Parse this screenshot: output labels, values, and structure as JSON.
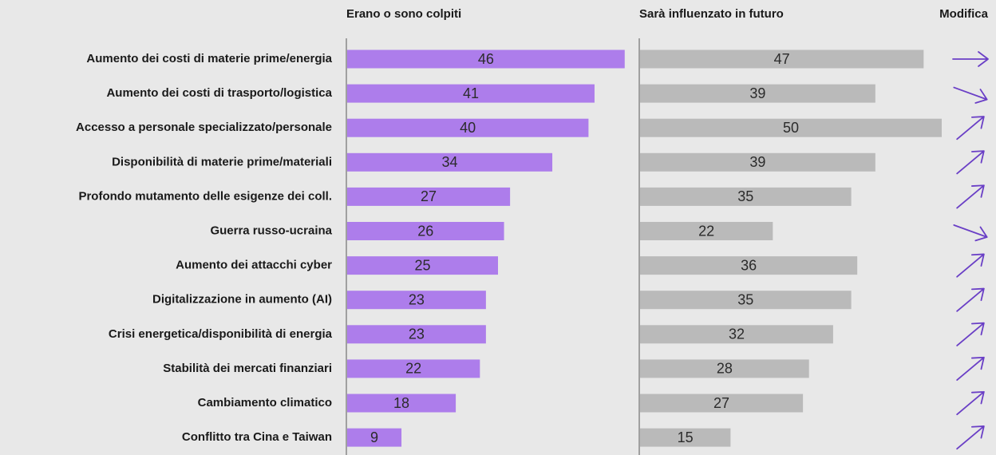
{
  "chart_data": {
    "type": "bar",
    "orientation": "horizontal",
    "categories": [
      "Aumento dei costi di materie prime/energia",
      "Aumento dei costi di trasporto/logistica",
      "Accesso a personale specializzato/personale",
      "Disponibilità di materie prime/materiali",
      "Profondo mutamento delle esigenze dei coll.",
      "Guerra russo-ucraina",
      "Aumento dei attacchi cyber",
      "Digitalizzazione in aumento (AI)",
      "Crisi energetica/disponibilità di energia",
      "Stabilità dei mercati finanziari",
      "Cambiamento climatico",
      "Conflitto tra Cina e Taiwan"
    ],
    "series": [
      {
        "name": "Erano o sono colpiti",
        "color": "#ad7deb",
        "values": [
          46,
          41,
          40,
          34,
          27,
          26,
          25,
          23,
          23,
          22,
          18,
          9
        ]
      },
      {
        "name": "Sarà influenzato in futuro",
        "color": "#bababa",
        "values": [
          47,
          39,
          50,
          39,
          35,
          22,
          36,
          35,
          32,
          28,
          27,
          15
        ]
      }
    ],
    "change_label": "Modifica",
    "change_color": "#6a3fc6",
    "xlim": [
      0,
      50
    ]
  }
}
